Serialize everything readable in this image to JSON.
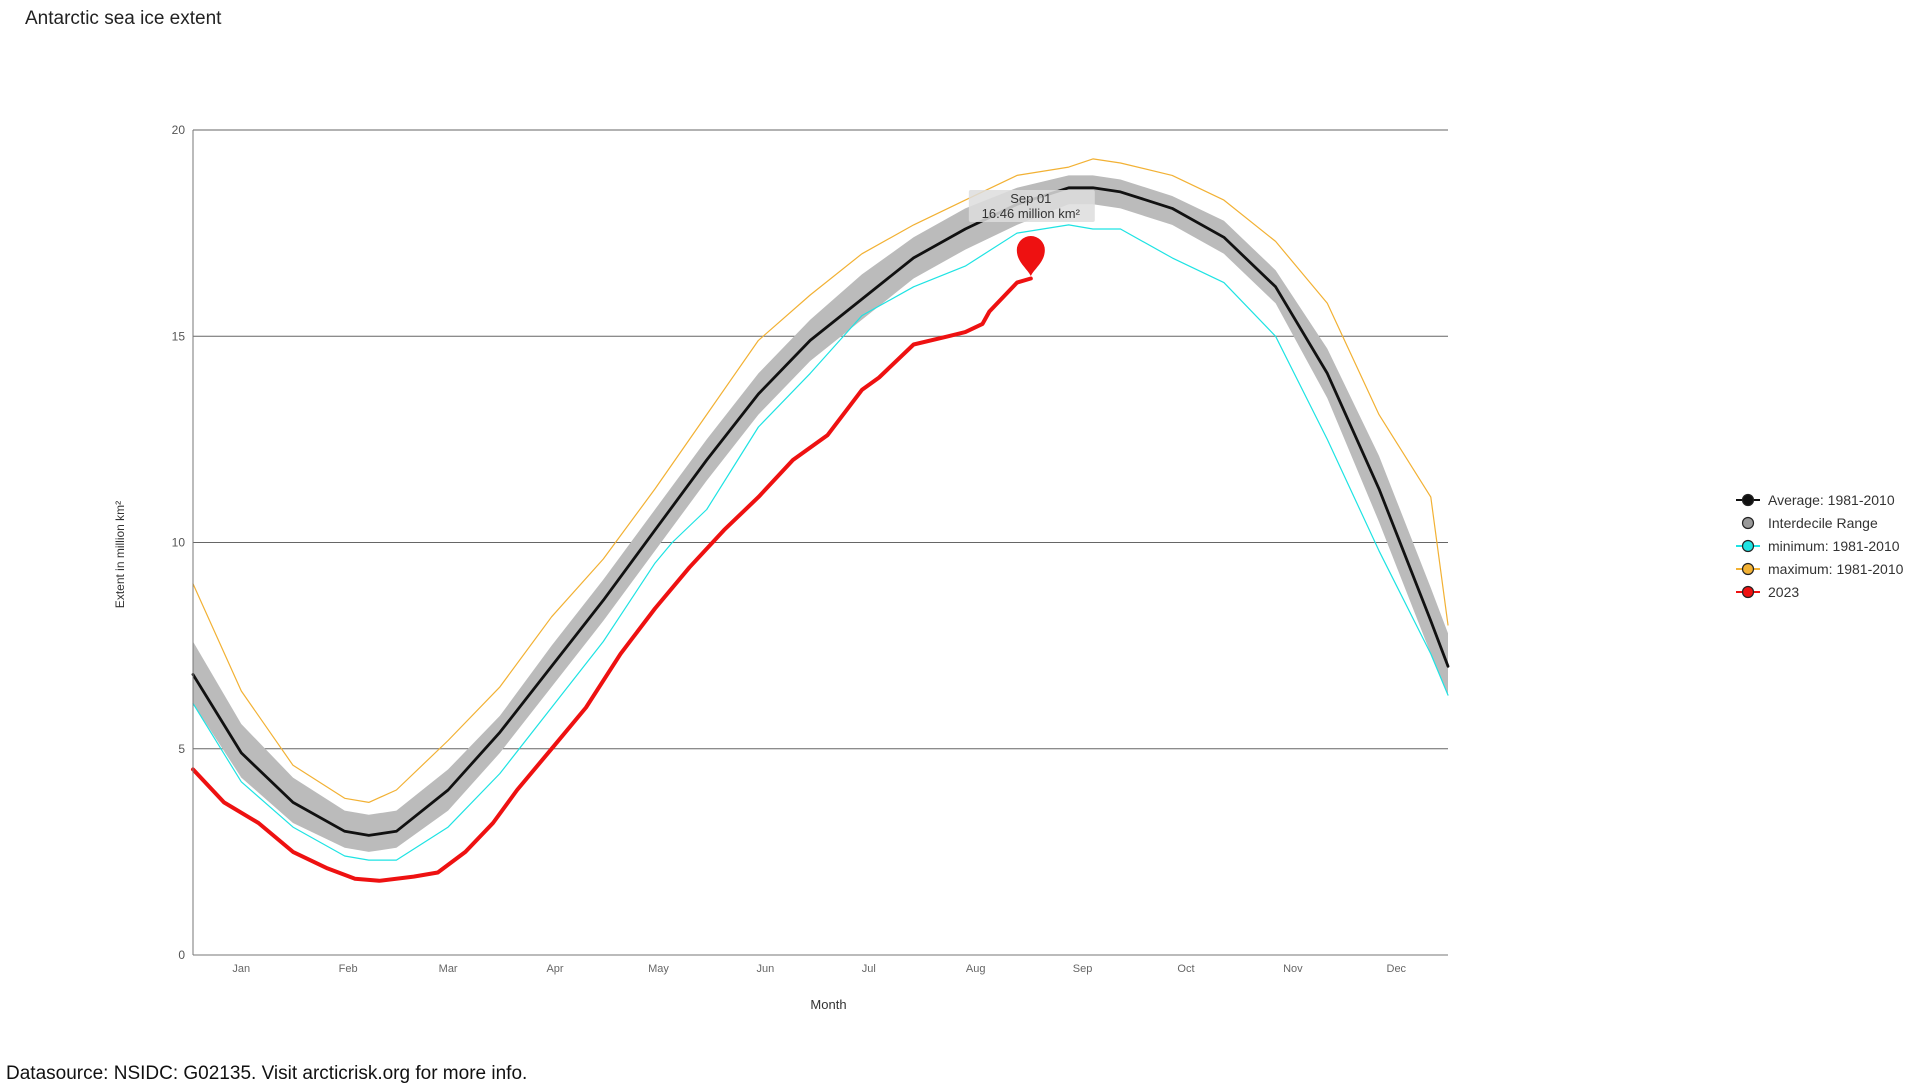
{
  "page": {
    "title": "Antarctic sea ice extent",
    "source": "Datasource: NSIDC: G02135. Visit arcticrisk.org for more info."
  },
  "chart_data": {
    "type": "line",
    "title": "Antarctic sea ice extent",
    "xlabel": "Month",
    "ylabel": "Extent in million km²",
    "xlim": [
      1,
      365
    ],
    "ylim": [
      0,
      20
    ],
    "yticks": [
      0,
      5,
      10,
      15,
      20
    ],
    "grid": "horizontal",
    "legend_position": "right",
    "months": [
      {
        "label": "Jan",
        "day": 15
      },
      {
        "label": "Feb",
        "day": 46
      },
      {
        "label": "Mar",
        "day": 75
      },
      {
        "label": "Apr",
        "day": 106
      },
      {
        "label": "May",
        "day": 136
      },
      {
        "label": "Jun",
        "day": 167
      },
      {
        "label": "Jul",
        "day": 197
      },
      {
        "label": "Aug",
        "day": 228
      },
      {
        "label": "Sep",
        "day": 259
      },
      {
        "label": "Oct",
        "day": 289
      },
      {
        "label": "Nov",
        "day": 320
      },
      {
        "label": "Dec",
        "day": 350
      }
    ],
    "series": [
      {
        "name": "Average: 1981-2010",
        "color": "#111111",
        "style": "line",
        "x": [
          1,
          15,
          30,
          45,
          52,
          60,
          75,
          90,
          105,
          120,
          135,
          150,
          165,
          180,
          195,
          210,
          225,
          240,
          255,
          262,
          270,
          285,
          300,
          315,
          330,
          345,
          360,
          365
        ],
        "y": [
          6.8,
          4.9,
          3.7,
          3.0,
          2.9,
          3.0,
          4.0,
          5.4,
          7.0,
          8.6,
          10.3,
          12.0,
          13.6,
          14.9,
          15.9,
          16.9,
          17.6,
          18.2,
          18.6,
          18.6,
          18.5,
          18.1,
          17.4,
          16.2,
          14.1,
          11.3,
          8.1,
          7.0
        ]
      },
      {
        "name": "Interdecile Range",
        "color": "#bbbbbb",
        "style": "band",
        "x": [
          1,
          15,
          30,
          45,
          52,
          60,
          75,
          90,
          105,
          120,
          135,
          150,
          165,
          180,
          195,
          210,
          225,
          240,
          255,
          262,
          270,
          285,
          300,
          315,
          330,
          345,
          360,
          365
        ],
        "upper": [
          7.6,
          5.6,
          4.3,
          3.5,
          3.4,
          3.5,
          4.5,
          5.8,
          7.5,
          9.1,
          10.8,
          12.5,
          14.1,
          15.4,
          16.5,
          17.4,
          18.1,
          18.6,
          18.9,
          18.9,
          18.8,
          18.4,
          17.8,
          16.6,
          14.7,
          12.1,
          8.9,
          7.8
        ],
        "lower": [
          6.1,
          4.3,
          3.2,
          2.6,
          2.5,
          2.6,
          3.5,
          4.9,
          6.5,
          8.1,
          9.8,
          11.5,
          13.1,
          14.4,
          15.4,
          16.4,
          17.1,
          17.7,
          18.2,
          18.2,
          18.1,
          17.7,
          17.0,
          15.8,
          13.5,
          10.5,
          7.3,
          6.3
        ]
      },
      {
        "name": "minimum: 1981-2010",
        "color": "#1ee3e3",
        "style": "line",
        "x": [
          1,
          15,
          30,
          45,
          52,
          60,
          75,
          90,
          105,
          120,
          135,
          140,
          150,
          165,
          180,
          195,
          210,
          225,
          240,
          255,
          262,
          270,
          285,
          300,
          315,
          330,
          345,
          360,
          365
        ],
        "y": [
          6.1,
          4.2,
          3.1,
          2.4,
          2.3,
          2.3,
          3.1,
          4.4,
          6.0,
          7.6,
          9.5,
          10.0,
          10.8,
          12.8,
          14.1,
          15.5,
          16.2,
          16.7,
          17.5,
          17.7,
          17.6,
          17.6,
          16.9,
          16.3,
          15.0,
          12.5,
          9.8,
          7.3,
          6.3
        ]
      },
      {
        "name": "maximum: 1981-2010",
        "color": "#f2b134",
        "style": "line",
        "x": [
          1,
          15,
          30,
          45,
          52,
          60,
          75,
          90,
          105,
          120,
          135,
          150,
          165,
          180,
          195,
          210,
          225,
          240,
          255,
          262,
          270,
          285,
          300,
          315,
          330,
          345,
          360,
          365
        ],
        "y": [
          9.0,
          6.4,
          4.6,
          3.8,
          3.7,
          4.0,
          5.2,
          6.5,
          8.2,
          9.6,
          11.3,
          13.1,
          14.9,
          16.0,
          17.0,
          17.7,
          18.3,
          18.9,
          19.1,
          19.3,
          19.2,
          18.9,
          18.3,
          17.3,
          15.8,
          13.1,
          11.1,
          8.0
        ]
      },
      {
        "name": "2023",
        "color": "#ee1111",
        "style": "line",
        "x": [
          1,
          10,
          20,
          30,
          40,
          48,
          55,
          65,
          72,
          80,
          88,
          95,
          105,
          115,
          125,
          135,
          145,
          155,
          165,
          175,
          185,
          195,
          200,
          210,
          220,
          225,
          230,
          232,
          240,
          244
        ],
        "y": [
          4.5,
          3.7,
          3.2,
          2.5,
          2.1,
          1.85,
          1.8,
          1.9,
          2.0,
          2.5,
          3.2,
          4.0,
          5.0,
          6.0,
          7.3,
          8.4,
          9.4,
          10.3,
          11.1,
          12.0,
          12.6,
          13.7,
          14.0,
          14.8,
          15.0,
          15.1,
          15.3,
          15.6,
          16.3,
          16.4
        ]
      }
    ],
    "tooltip": {
      "date": "Sep 01",
      "value": "16.46 million km²",
      "x": 244,
      "y": 16.46
    }
  }
}
